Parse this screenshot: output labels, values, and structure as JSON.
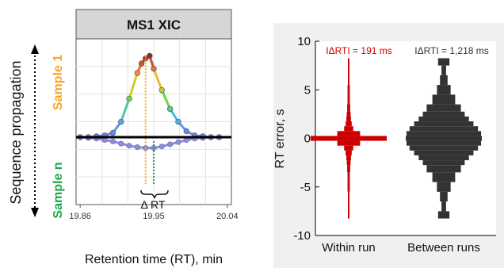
{
  "chart_data": [
    {
      "type": "line",
      "title": "MS1 XIC",
      "xlabel": "Retention time (RT), min",
      "ylabel": "",
      "side_label": "Sequence propagation",
      "xlim": [
        19.855,
        20.045
      ],
      "xticks": [
        "19.86",
        "19.95",
        "20.04"
      ],
      "xtick_values": [
        19.86,
        19.95,
        20.04
      ],
      "grid": true,
      "delta_label": "Δ RT",
      "series": [
        {
          "name": "Sample 1",
          "label_color": "#f5a623",
          "marker_line_color": "#f5a623",
          "apex_x": 19.94,
          "x": [
            19.86,
            19.87,
            19.88,
            19.89,
            19.9,
            19.91,
            19.92,
            19.93,
            19.935,
            19.94,
            19.945,
            19.95,
            19.96,
            19.97,
            19.98,
            19.99,
            20.0,
            20.01,
            20.02,
            20.03
          ],
          "y": [
            0.0,
            0.0,
            0.01,
            0.02,
            0.05,
            0.18,
            0.45,
            0.75,
            0.86,
            0.92,
            0.95,
            0.8,
            0.55,
            0.33,
            0.18,
            0.07,
            0.02,
            0.01,
            0.0,
            0.0
          ]
        },
        {
          "name": "Sample n",
          "label_color": "#1aa84a",
          "marker_line_color": "#1aa84a",
          "apex_x": 19.95,
          "x": [
            19.86,
            19.87,
            19.88,
            19.89,
            19.9,
            19.91,
            19.92,
            19.93,
            19.94,
            19.95,
            19.96,
            19.97,
            19.98,
            19.99,
            20.0,
            20.01,
            20.02,
            20.03
          ],
          "y": [
            0.0,
            -0.01,
            -0.02,
            -0.04,
            -0.06,
            -0.09,
            -0.12,
            -0.14,
            -0.15,
            -0.15,
            -0.13,
            -0.1,
            -0.07,
            -0.04,
            -0.02,
            -0.01,
            0.0,
            0.0
          ]
        }
      ]
    },
    {
      "type": "violin",
      "title": "",
      "xlabel": "",
      "ylabel": "RT error, s",
      "ylim": [
        -10,
        10
      ],
      "yticks": [
        -10,
        -5,
        0,
        5,
        10
      ],
      "grid": false,
      "categories": [
        "Within run",
        "Between runs"
      ],
      "annotations": [
        "IΔRTI = 191 ms",
        "IΔRTI = 1,218 ms"
      ],
      "annotation_colors": [
        "#cc0000",
        "#333333"
      ],
      "colors": [
        "#cc0000",
        "#333333"
      ],
      "density_y": [
        -8,
        -7,
        -6,
        -5,
        -4,
        -3,
        -2.5,
        -2,
        -1.5,
        -1,
        -0.5,
        0,
        0.5,
        1,
        1.5,
        2,
        2.5,
        3,
        4,
        5,
        6,
        7,
        8
      ],
      "violins": [
        {
          "name": "Within run",
          "half_widths": [
            0.02,
            0.02,
            0.02,
            0.03,
            0.03,
            0.04,
            0.05,
            0.06,
            0.08,
            0.12,
            0.3,
            1.0,
            0.3,
            0.12,
            0.08,
            0.06,
            0.05,
            0.04,
            0.03,
            0.03,
            0.02,
            0.02,
            0.02
          ]
        },
        {
          "name": "Between runs",
          "half_widths": [
            0.15,
            0.06,
            0.1,
            0.18,
            0.3,
            0.45,
            0.55,
            0.66,
            0.78,
            0.9,
            0.98,
            1.0,
            0.98,
            0.9,
            0.78,
            0.66,
            0.55,
            0.45,
            0.3,
            0.18,
            0.1,
            0.06,
            0.15
          ]
        }
      ]
    }
  ]
}
